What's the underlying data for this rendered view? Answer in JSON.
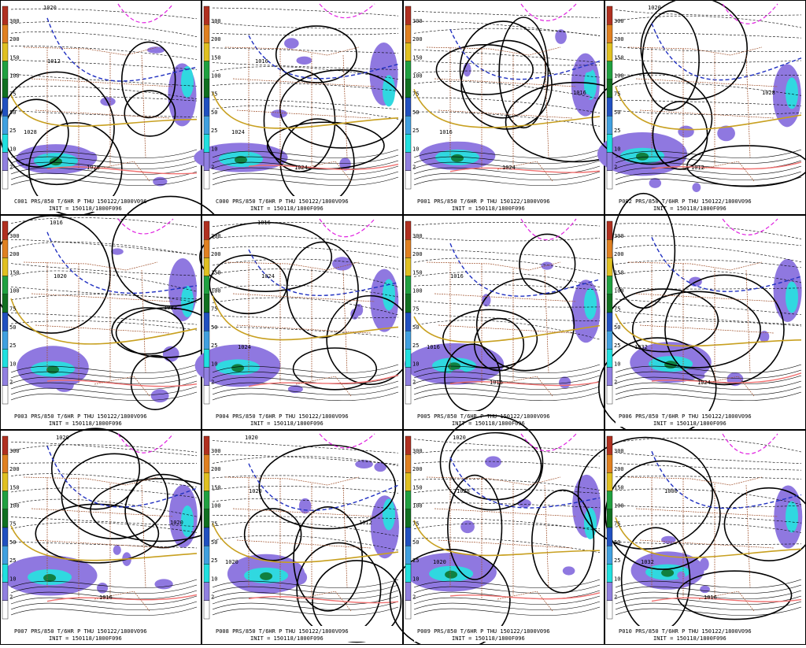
{
  "colorbar": {
    "ticks": [
      "300",
      "200",
      "150",
      "100",
      "75",
      "50",
      "25",
      "10",
      "2"
    ]
  },
  "panels": [
    {
      "label": "C001 PRS/850 T/6HR P THU 150122/1800V096",
      "init": "INIT = 150118/1800F096",
      "contours": [
        "1020",
        "1012",
        "1028",
        "1020"
      ]
    },
    {
      "label": "C000 PRS/850 T/6HR P THU 150122/1800V096",
      "init": "INIT = 150118/1800F096",
      "contours": [
        "1016",
        "1024",
        "1024"
      ]
    },
    {
      "label": "P001 PRS/850 T/6HR P THU 150122/1800V096",
      "init": "INIT = 150118/1800F096",
      "contours": [
        "1016",
        "1024",
        "1016"
      ]
    },
    {
      "label": "P002 PRS/850 T/6HR P THU 150122/1800V096",
      "init": "INIT = 150118/1800F096",
      "contours": [
        "1012",
        "1028",
        "1020"
      ]
    },
    {
      "label": "P003 PRS/850 T/6HR P THU 150122/1800V096",
      "init": "INIT = 150118/1800F096",
      "contours": [
        "1032",
        "1016",
        "1020"
      ]
    },
    {
      "label": "P004 PRS/850 T/6HR P THU 150122/1800V096",
      "init": "INIT = 150118/1800F096",
      "contours": [
        "1016",
        "1024",
        "1024"
      ]
    },
    {
      "label": "P005 PRS/850 T/6HR P THU 150122/1800V096",
      "init": "INIT = 150118/1800F096",
      "contours": [
        "1016",
        "1016",
        "1016"
      ]
    },
    {
      "label": "P006 PRS/850 T/6HR P THU 150122/1800V096",
      "init": "INIT = 150118/1800F096",
      "contours": [
        "1032",
        "1024"
      ]
    },
    {
      "label": "P007 PRS/850 T/6HR P THU 150122/1800V096",
      "init": "INIT = 150118/1800F096",
      "contours": [
        "1016",
        "1020",
        "1020"
      ]
    },
    {
      "label": "P008 PRS/850 T/6HR P THU 150122/1800V096",
      "init": "INIT = 150118/1800F096",
      "contours": [
        "1012",
        "1020",
        "1020",
        "1020"
      ]
    },
    {
      "label": "P009 PRS/850 T/6HR P THU 150122/1800V096",
      "init": "INIT = 150118/1800F096",
      "contours": [
        "1020",
        "1028",
        "1020"
      ]
    },
    {
      "label": "P010 PRS/850 T/6HR P THU 150122/1800V096",
      "init": "INIT = 150118/1800F096",
      "contours": [
        "1000",
        "1032",
        "1016"
      ]
    }
  ]
}
